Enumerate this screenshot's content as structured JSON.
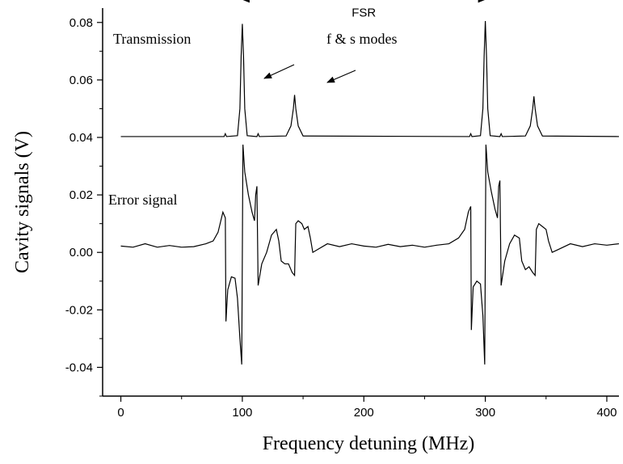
{
  "chart_data": {
    "type": "line",
    "xlabel": "Frequency detuning (MHz)",
    "ylabel": "Cavity signals (V)",
    "xlim": [
      -15,
      410
    ],
    "ylim": [
      -0.05,
      0.085
    ],
    "x_ticks": [
      0,
      100,
      200,
      300,
      400
    ],
    "x_tick_labels": [
      "0",
      "100",
      "200",
      "300",
      "400"
    ],
    "y_ticks": [
      -0.04,
      -0.02,
      0.0,
      0.02,
      0.04,
      0.06,
      0.08
    ],
    "y_tick_labels": [
      "-0.04",
      "-0.02",
      "0.00",
      "0.02",
      "0.04",
      "0.06",
      "0.08"
    ],
    "grid": false,
    "series": [
      {
        "name": "Transmission",
        "baseline": 0.0403,
        "points": [
          [
            0,
            0.0403
          ],
          [
            85,
            0.0403
          ],
          [
            86,
            0.0413
          ],
          [
            87,
            0.0403
          ],
          [
            96,
            0.0406
          ],
          [
            98,
            0.05
          ],
          [
            99,
            0.068
          ],
          [
            100,
            0.0795
          ],
          [
            101,
            0.068
          ],
          [
            102,
            0.05
          ],
          [
            104,
            0.0406
          ],
          [
            112,
            0.0403
          ],
          [
            113,
            0.0413
          ],
          [
            114,
            0.0403
          ],
          [
            136,
            0.0405
          ],
          [
            140,
            0.044
          ],
          [
            142,
            0.05
          ],
          [
            143,
            0.0548
          ],
          [
            144,
            0.05
          ],
          [
            146,
            0.044
          ],
          [
            150,
            0.0405
          ],
          [
            287,
            0.0403
          ],
          [
            288,
            0.0413
          ],
          [
            289,
            0.0403
          ],
          [
            296,
            0.0406
          ],
          [
            298,
            0.05
          ],
          [
            299,
            0.068
          ],
          [
            300,
            0.0805
          ],
          [
            301,
            0.068
          ],
          [
            302,
            0.05
          ],
          [
            304,
            0.0406
          ],
          [
            312,
            0.0403
          ],
          [
            313,
            0.0413
          ],
          [
            314,
            0.0403
          ],
          [
            333,
            0.0405
          ],
          [
            337,
            0.044
          ],
          [
            339,
            0.05
          ],
          [
            340,
            0.0543
          ],
          [
            341,
            0.05
          ],
          [
            343,
            0.044
          ],
          [
            347,
            0.0405
          ],
          [
            410,
            0.0403
          ]
        ]
      },
      {
        "name": "Error signal",
        "points": [
          [
            0,
            0.0022
          ],
          [
            10,
            0.0018
          ],
          [
            20,
            0.003
          ],
          [
            30,
            0.0018
          ],
          [
            40,
            0.0024
          ],
          [
            50,
            0.0018
          ],
          [
            60,
            0.002
          ],
          [
            70,
            0.003
          ],
          [
            76,
            0.004
          ],
          [
            80,
            0.007
          ],
          [
            84,
            0.014
          ],
          [
            86,
            0.012
          ],
          [
            86.5,
            -0.024
          ],
          [
            88,
            -0.013
          ],
          [
            91,
            -0.0085
          ],
          [
            94,
            -0.009
          ],
          [
            96,
            -0.016
          ],
          [
            98,
            -0.03
          ],
          [
            99.5,
            -0.039
          ],
          [
            100.5,
            0.0375
          ],
          [
            102,
            0.028
          ],
          [
            105,
            0.02
          ],
          [
            108,
            0.014
          ],
          [
            110,
            0.011
          ],
          [
            111,
            0.02
          ],
          [
            112,
            0.023
          ],
          [
            113,
            -0.0115
          ],
          [
            116,
            -0.004
          ],
          [
            120,
            0.0
          ],
          [
            124,
            0.006
          ],
          [
            128,
            0.008
          ],
          [
            130,
            0.004
          ],
          [
            132,
            -0.003
          ],
          [
            135,
            -0.004
          ],
          [
            138,
            -0.004
          ],
          [
            141,
            -0.007
          ],
          [
            143,
            -0.008
          ],
          [
            144,
            0.01
          ],
          [
            146,
            0.011
          ],
          [
            149,
            0.01
          ],
          [
            151,
            0.008
          ],
          [
            154,
            0.009
          ],
          [
            156,
            0.005
          ],
          [
            158,
            0.0
          ],
          [
            162,
            0.001
          ],
          [
            170,
            0.003
          ],
          [
            180,
            0.002
          ],
          [
            190,
            0.003
          ],
          [
            200,
            0.0022
          ],
          [
            210,
            0.0018
          ],
          [
            220,
            0.0028
          ],
          [
            230,
            0.002
          ],
          [
            240,
            0.0025
          ],
          [
            250,
            0.0018
          ],
          [
            260,
            0.0025
          ],
          [
            270,
            0.003
          ],
          [
            278,
            0.005
          ],
          [
            283,
            0.008
          ],
          [
            286,
            0.014
          ],
          [
            288,
            0.016
          ],
          [
            288.5,
            -0.027
          ],
          [
            290,
            -0.012
          ],
          [
            293,
            -0.01
          ],
          [
            296,
            -0.011
          ],
          [
            298,
            -0.022
          ],
          [
            299.5,
            -0.039
          ],
          [
            300.5,
            0.0375
          ],
          [
            302,
            0.028
          ],
          [
            305,
            0.021
          ],
          [
            308,
            0.015
          ],
          [
            310,
            0.012
          ],
          [
            311,
            0.023
          ],
          [
            312,
            0.025
          ],
          [
            313,
            -0.0115
          ],
          [
            316,
            -0.003
          ],
          [
            320,
            0.003
          ],
          [
            324,
            0.006
          ],
          [
            328,
            0.005
          ],
          [
            330,
            -0.003
          ],
          [
            333,
            -0.006
          ],
          [
            336,
            -0.005
          ],
          [
            339,
            -0.007
          ],
          [
            341,
            -0.008
          ],
          [
            342,
            0.008
          ],
          [
            344,
            0.01
          ],
          [
            347,
            0.009
          ],
          [
            350,
            0.008
          ],
          [
            352,
            0.004
          ],
          [
            355,
            0.0
          ],
          [
            360,
            0.001
          ],
          [
            370,
            0.003
          ],
          [
            380,
            0.002
          ],
          [
            390,
            0.003
          ],
          [
            400,
            0.0025
          ],
          [
            410,
            0.003
          ]
        ]
      }
    ],
    "annotations": {
      "transmission_label": "Transmission",
      "error_label": "Error signal",
      "modes_label": "f & s modes",
      "fsr_label": "FSR",
      "fsr_arrow_x": [
        100,
        300
      ],
      "fsr_arrow_y": 0.088
    }
  }
}
